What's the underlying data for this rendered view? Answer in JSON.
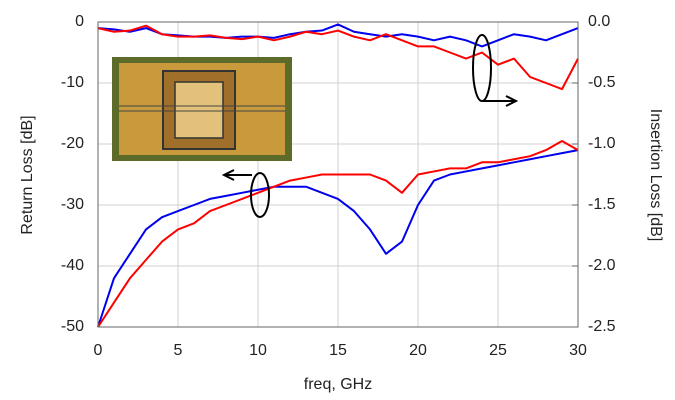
{
  "chart_data": {
    "type": "line",
    "x_label": "freq, GHz",
    "y_label": "Return  Loss [dB]",
    "y2_label": "Insertion Loss [dB]",
    "x": [
      0,
      1,
      2,
      3,
      4,
      5,
      6,
      7,
      8,
      9,
      10,
      11,
      12,
      13,
      14,
      15,
      16,
      17,
      18,
      19,
      20,
      21,
      22,
      23,
      24,
      25,
      26,
      27,
      28,
      29,
      30
    ],
    "xlim": [
      0,
      30
    ],
    "xticks": [
      0,
      5,
      10,
      15,
      20,
      25,
      30
    ],
    "ylim": [
      -50,
      0
    ],
    "yticks": [
      -50,
      -40,
      -30,
      -20,
      -10,
      0
    ],
    "y2lim": [
      -2.5,
      0
    ],
    "y2ticks": [
      -2.5,
      {
        "value": -2,
        "label": "-2.0"
      },
      -1.5,
      {
        "value": -1,
        "label": "-1.0"
      },
      -0.5,
      {
        "value": 0,
        "label": "0.0"
      }
    ],
    "grid": true,
    "series": [
      {
        "color": "#0000ee",
        "values": [
          -50,
          -42,
          -38,
          -34,
          -32,
          -31,
          -30,
          -29,
          -28.5,
          -28,
          -27.5,
          -27,
          -27,
          -27,
          -28,
          -29,
          -31,
          -34,
          -38,
          -36,
          -30,
          -26,
          -25,
          -24.5,
          -24,
          -23.5,
          -23,
          -22.5,
          -22,
          -21.5,
          -21
        ]
      },
      {
        "color": "#ff0000",
        "values": [
          -50,
          -46,
          -42,
          -39,
          -36,
          -34,
          -33,
          -31,
          -30,
          -29,
          -28,
          -27,
          -26,
          -25.5,
          -25,
          -25,
          -25,
          -25,
          -26,
          -28,
          -25,
          -24.5,
          -24,
          -24,
          -23,
          -23,
          -22.5,
          -22,
          -21,
          -19.5,
          -21
        ]
      },
      {
        "color": "#0000ee",
        "axis": "y2",
        "values": [
          -0.05,
          -0.06,
          -0.08,
          -0.05,
          -0.1,
          -0.11,
          -0.12,
          -0.12,
          -0.13,
          -0.12,
          -0.12,
          -0.13,
          -0.1,
          -0.08,
          -0.07,
          -0.02,
          -0.08,
          -0.1,
          -0.12,
          -0.1,
          -0.12,
          -0.15,
          -0.12,
          -0.15,
          -0.2,
          -0.15,
          -0.1,
          -0.12,
          -0.15,
          -0.1,
          -0.05
        ]
      },
      {
        "color": "#ff0000",
        "axis": "y2",
        "values": [
          -0.05,
          -0.08,
          -0.07,
          -0.03,
          -0.1,
          -0.12,
          -0.12,
          -0.11,
          -0.13,
          -0.14,
          -0.12,
          -0.15,
          -0.12,
          -0.08,
          -0.1,
          -0.07,
          -0.12,
          -0.15,
          -0.1,
          -0.15,
          -0.2,
          -0.2,
          -0.25,
          -0.3,
          -0.25,
          -0.35,
          -0.3,
          -0.45,
          -0.5,
          -0.55,
          -0.3
        ]
      }
    ]
  }
}
